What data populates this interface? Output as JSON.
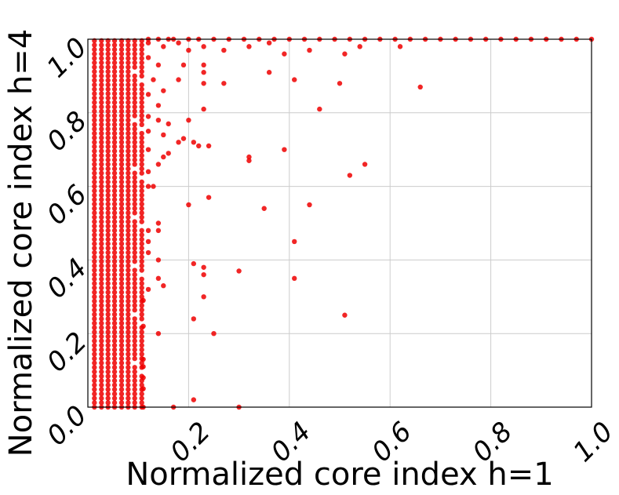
{
  "chart_data": {
    "type": "scatter",
    "xlabel": "Normalized core index  h=1",
    "ylabel": "Normalized core index  h=4",
    "xlim": [
      0.0,
      1.0
    ],
    "ylim": [
      0.0,
      1.0
    ],
    "grid": true,
    "marker_color": "#ee0000",
    "xticks": [
      "0.2",
      "0.4",
      "0.6",
      "0.8",
      "1.0"
    ],
    "yticks": [
      "0.0",
      "0.2",
      "0.4",
      "0.6",
      "0.8",
      "1.0"
    ],
    "xtick_values": [
      0.2,
      0.4,
      0.6,
      0.8,
      1.0
    ],
    "ytick_values": [
      0.0,
      0.2,
      0.4,
      0.6,
      0.8,
      1.0
    ],
    "dense_columns": {
      "x": [
        0.013,
        0.027,
        0.04,
        0.053,
        0.067,
        0.08,
        0.093,
        0.107
      ],
      "y_step": 0.012
    },
    "points": [
      [
        0.12,
        1.0
      ],
      [
        0.14,
        1.0
      ],
      [
        0.16,
        1.0
      ],
      [
        0.17,
        1.0
      ],
      [
        0.2,
        1.0
      ],
      [
        0.22,
        1.0
      ],
      [
        0.25,
        1.0
      ],
      [
        0.28,
        1.0
      ],
      [
        0.31,
        1.0
      ],
      [
        0.34,
        1.0
      ],
      [
        0.37,
        1.0
      ],
      [
        0.4,
        1.0
      ],
      [
        0.43,
        1.0
      ],
      [
        0.46,
        1.0
      ],
      [
        0.49,
        1.0
      ],
      [
        0.52,
        1.0
      ],
      [
        0.55,
        1.0
      ],
      [
        0.58,
        1.0
      ],
      [
        0.61,
        1.0
      ],
      [
        0.64,
        1.0
      ],
      [
        0.67,
        1.0
      ],
      [
        0.7,
        1.0
      ],
      [
        0.73,
        1.0
      ],
      [
        0.76,
        1.0
      ],
      [
        0.79,
        1.0
      ],
      [
        0.82,
        1.0
      ],
      [
        0.85,
        1.0
      ],
      [
        0.88,
        1.0
      ],
      [
        0.91,
        1.0
      ],
      [
        0.94,
        1.0
      ],
      [
        0.97,
        1.0
      ],
      [
        1.0,
        1.0
      ],
      [
        0.12,
        0.99
      ],
      [
        0.15,
        0.98
      ],
      [
        0.18,
        0.99
      ],
      [
        0.2,
        0.97
      ],
      [
        0.23,
        0.98
      ],
      [
        0.27,
        0.97
      ],
      [
        0.32,
        0.98
      ],
      [
        0.36,
        0.99
      ],
      [
        0.39,
        0.96
      ],
      [
        0.44,
        0.97
      ],
      [
        0.51,
        0.96
      ],
      [
        0.54,
        0.98
      ],
      [
        0.62,
        0.98
      ],
      [
        0.12,
        0.95
      ],
      [
        0.14,
        0.93
      ],
      [
        0.19,
        0.93
      ],
      [
        0.23,
        0.93
      ],
      [
        0.23,
        0.91
      ],
      [
        0.13,
        0.89
      ],
      [
        0.18,
        0.89
      ],
      [
        0.23,
        0.88
      ],
      [
        0.27,
        0.88
      ],
      [
        0.36,
        0.91
      ],
      [
        0.41,
        0.89
      ],
      [
        0.5,
        0.88
      ],
      [
        0.66,
        0.87
      ],
      [
        0.12,
        0.85
      ],
      [
        0.15,
        0.86
      ],
      [
        0.14,
        0.82
      ],
      [
        0.23,
        0.81
      ],
      [
        0.46,
        0.81
      ],
      [
        0.12,
        0.79
      ],
      [
        0.14,
        0.78
      ],
      [
        0.16,
        0.77
      ],
      [
        0.2,
        0.78
      ],
      [
        0.12,
        0.75
      ],
      [
        0.15,
        0.74
      ],
      [
        0.19,
        0.73
      ],
      [
        0.18,
        0.72
      ],
      [
        0.21,
        0.72
      ],
      [
        0.22,
        0.71
      ],
      [
        0.24,
        0.71
      ],
      [
        0.16,
        0.69
      ],
      [
        0.15,
        0.68
      ],
      [
        0.32,
        0.68
      ],
      [
        0.32,
        0.67
      ],
      [
        0.39,
        0.7
      ],
      [
        0.12,
        0.7
      ],
      [
        0.14,
        0.66
      ],
      [
        0.55,
        0.66
      ],
      [
        0.52,
        0.63
      ],
      [
        0.12,
        0.64
      ],
      [
        0.24,
        0.57
      ],
      [
        0.2,
        0.55
      ],
      [
        0.35,
        0.54
      ],
      [
        0.44,
        0.55
      ],
      [
        0.12,
        0.6
      ],
      [
        0.14,
        0.5
      ],
      [
        0.12,
        0.48
      ],
      [
        0.14,
        0.48
      ],
      [
        0.12,
        0.45
      ],
      [
        0.41,
        0.45
      ],
      [
        0.12,
        0.42
      ],
      [
        0.14,
        0.4
      ],
      [
        0.21,
        0.39
      ],
      [
        0.23,
        0.38
      ],
      [
        0.23,
        0.36
      ],
      [
        0.3,
        0.37
      ],
      [
        0.14,
        0.35
      ],
      [
        0.15,
        0.33
      ],
      [
        0.41,
        0.35
      ],
      [
        0.12,
        0.32
      ],
      [
        0.23,
        0.3
      ],
      [
        0.11,
        0.29
      ],
      [
        0.21,
        0.24
      ],
      [
        0.51,
        0.25
      ],
      [
        0.11,
        0.22
      ],
      [
        0.14,
        0.2
      ],
      [
        0.25,
        0.2
      ],
      [
        0.11,
        0.13
      ],
      [
        0.11,
        0.11
      ],
      [
        0.11,
        0.08
      ],
      [
        0.11,
        0.05
      ],
      [
        0.21,
        0.02
      ],
      [
        0.17,
        0.0
      ],
      [
        0.3,
        0.0
      ],
      [
        0.11,
        0.0
      ],
      [
        0.13,
        0.6
      ]
    ]
  }
}
